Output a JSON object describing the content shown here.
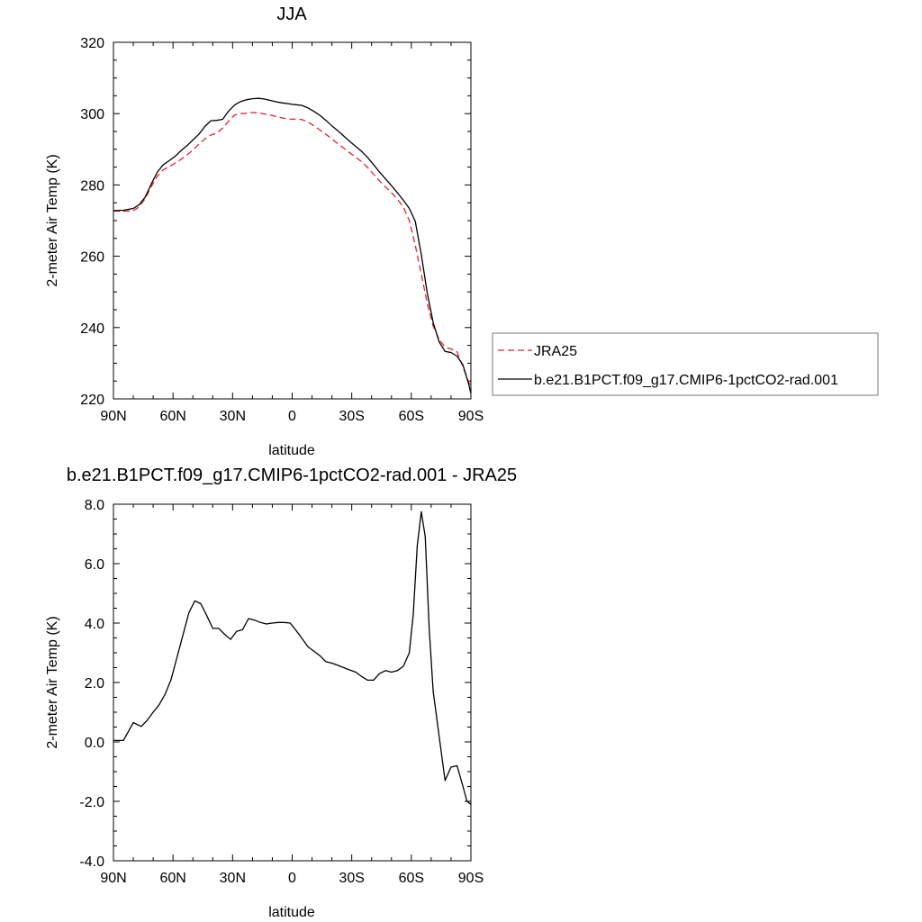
{
  "chart_data": [
    {
      "type": "line",
      "title": "JJA",
      "xlabel": "latitude",
      "ylabel": "2-meter Air Temp (K)",
      "xlim": [
        90,
        -90
      ],
      "ylim": [
        220,
        320
      ],
      "xticks": [
        90,
        60,
        30,
        0,
        -30,
        -60,
        -90
      ],
      "xtick_labels": [
        "90N",
        "60N",
        "30N",
        "0",
        "30S",
        "60S",
        "90S"
      ],
      "yticks": [
        220,
        240,
        260,
        280,
        300,
        320
      ],
      "ytick_labels": [
        "220",
        "240",
        "260",
        "280",
        "300",
        "320"
      ],
      "grid": false,
      "legend_position": "right",
      "series": [
        {
          "name": "JRA25",
          "color": "#e8202a",
          "dash": "dashed",
          "x": [
            90,
            85,
            80,
            77,
            74,
            71,
            68,
            65,
            62,
            59,
            56,
            53,
            50,
            47,
            44,
            41,
            38,
            35,
            32,
            29,
            26,
            23,
            20,
            17,
            14,
            11,
            8,
            5,
            2,
            0,
            -2,
            -5,
            -8,
            -11,
            -14,
            -17,
            -20,
            -23,
            -26,
            -29,
            -32,
            -35,
            -38,
            -41,
            -44,
            -47,
            -50,
            -53,
            -56,
            -59,
            -62,
            -65,
            -68,
            -71,
            -74,
            -77,
            -80,
            -83,
            -86,
            -89,
            -90
          ],
          "y": [
            272.7,
            272.6,
            272.8,
            273.9,
            276.2,
            279.5,
            282.4,
            284.2,
            285.1,
            286.1,
            287.2,
            288.4,
            289.8,
            291.4,
            292.9,
            294.0,
            294.5,
            295.9,
            297.9,
            299.6,
            300.0,
            300.1,
            300.3,
            300.2,
            299.9,
            299.6,
            299.2,
            298.8,
            298.5,
            298.4,
            298.5,
            298.3,
            297.6,
            296.6,
            295.4,
            294.2,
            292.9,
            291.6,
            290.3,
            289.0,
            287.8,
            286.5,
            284.9,
            283.0,
            281.1,
            279.4,
            277.8,
            276.0,
            273.8,
            270.0,
            263.1,
            255.0,
            246.8,
            240.4,
            236.7,
            234.5,
            234.0,
            233.2,
            229.0,
            224.5,
            223.8
          ]
        },
        {
          "name": "b.e21.B1PCT.f09_g17.CMIP6-1pctCO2-rad.001",
          "color": "#000000",
          "dash": "solid",
          "x": [
            90,
            85,
            80,
            77,
            74,
            71,
            68,
            65,
            62,
            59,
            56,
            53,
            50,
            47,
            44,
            41,
            38,
            35,
            32,
            29,
            26,
            23,
            20,
            17,
            14,
            11,
            8,
            5,
            2,
            0,
            -2,
            -5,
            -8,
            -11,
            -14,
            -17,
            -20,
            -23,
            -26,
            -29,
            -32,
            -35,
            -38,
            -41,
            -44,
            -47,
            -50,
            -53,
            -56,
            -59,
            -62,
            -65,
            -68,
            -71,
            -74,
            -77,
            -80,
            -83,
            -86,
            -89,
            -90
          ],
          "y": [
            272.8,
            272.9,
            273.4,
            274.5,
            276.6,
            280.2,
            283.5,
            285.6,
            286.8,
            288.0,
            289.6,
            291.0,
            292.6,
            294.2,
            296.4,
            298.0,
            298.1,
            298.4,
            300.7,
            302.4,
            303.4,
            303.9,
            304.2,
            304.3,
            304.1,
            303.7,
            303.3,
            303.0,
            302.8,
            302.6,
            302.5,
            302.3,
            301.6,
            300.6,
            299.5,
            298.1,
            296.6,
            295.2,
            293.7,
            292.2,
            290.8,
            289.4,
            287.7,
            285.7,
            283.6,
            281.7,
            279.8,
            277.8,
            275.7,
            273.4,
            269.8,
            260.5,
            249.7,
            241.4,
            236.0,
            233.3,
            233.0,
            232.0,
            229.5,
            223.9,
            221.5
          ]
        }
      ]
    },
    {
      "type": "line",
      "title": "b.e21.B1PCT.f09_g17.CMIP6-1pctCO2-rad.001 - JRA25",
      "xlabel": "latitude",
      "ylabel": "2-meter Air Temp (K)",
      "xlim": [
        90,
        -90
      ],
      "ylim": [
        -4,
        8
      ],
      "xticks": [
        90,
        60,
        30,
        0,
        -30,
        -60,
        -90
      ],
      "xtick_labels": [
        "90N",
        "60N",
        "30N",
        "0",
        "30S",
        "60S",
        "90S"
      ],
      "yticks": [
        -4,
        -2,
        0,
        2,
        4,
        6,
        8
      ],
      "ytick_labels": [
        "-4.0",
        "-2.0",
        "0.0",
        "2.0",
        "4.0",
        "6.0",
        "8.0"
      ],
      "grid": false,
      "series": [
        {
          "color": "#000000",
          "dash": "solid",
          "x": [
            90,
            85,
            80,
            76,
            73,
            70,
            67,
            64,
            61,
            58,
            55,
            52,
            49,
            46,
            43,
            40,
            37,
            34,
            31,
            28,
            25,
            22,
            19,
            16,
            13,
            10,
            7,
            4,
            1,
            -2,
            -5,
            -8,
            -11,
            -14,
            -17,
            -20,
            -23,
            -26,
            -29,
            -32,
            -35,
            -38,
            -41,
            -44,
            -47,
            -50,
            -53,
            -56,
            -59,
            -61,
            -63,
            -65,
            -67,
            -69,
            -71,
            -73,
            -75,
            -77,
            -80,
            -83,
            -86,
            -88,
            -90
          ],
          "y": [
            0.05,
            0.05,
            0.65,
            0.52,
            0.73,
            1.0,
            1.25,
            1.6,
            2.1,
            2.85,
            3.6,
            4.35,
            4.75,
            4.65,
            4.25,
            3.82,
            3.82,
            3.62,
            3.45,
            3.72,
            3.78,
            4.15,
            4.1,
            4.02,
            3.97,
            4.0,
            4.02,
            4.02,
            4.0,
            3.75,
            3.48,
            3.2,
            3.05,
            2.9,
            2.7,
            2.65,
            2.58,
            2.5,
            2.42,
            2.35,
            2.2,
            2.08,
            2.08,
            2.3,
            2.4,
            2.35,
            2.4,
            2.55,
            3.0,
            4.3,
            6.6,
            7.75,
            6.9,
            3.8,
            1.7,
            0.7,
            -0.3,
            -1.3,
            -0.85,
            -0.8,
            -1.5,
            -2.0,
            -2.1
          ]
        }
      ]
    }
  ]
}
